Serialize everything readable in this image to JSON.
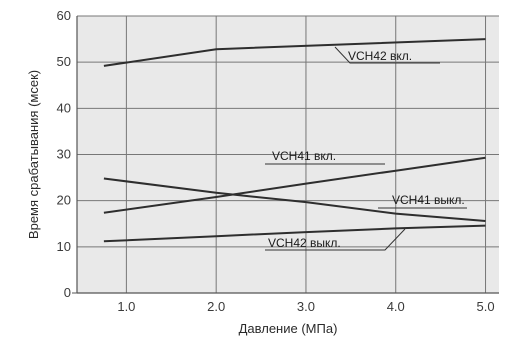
{
  "chart_data": {
    "type": "line",
    "xlabel": "Давление (МПа)",
    "ylabel": "Время срабатывания (мсек)",
    "xlim": [
      0.45,
      5.15
    ],
    "ylim": [
      0,
      60
    ],
    "x_ticks": [
      "1.0",
      "2.0",
      "3.0",
      "4.0",
      "5.0"
    ],
    "y_ticks": [
      "0",
      "10",
      "20",
      "30",
      "40",
      "50",
      "60"
    ],
    "grid": true,
    "background": "#e9e9e9",
    "line_color": "#2e2e2e",
    "series": [
      {
        "name": "VCH42 вкл.",
        "points": [
          [
            0.75,
            49.2
          ],
          [
            2.0,
            52.8
          ],
          [
            5.0,
            55.0
          ]
        ]
      },
      {
        "name": "VCH41 вкл.",
        "points": [
          [
            0.75,
            17.4
          ],
          [
            2.0,
            20.8
          ],
          [
            3.0,
            23.7
          ],
          [
            4.0,
            26.5
          ],
          [
            5.0,
            29.3
          ]
        ]
      },
      {
        "name": "VCH41 выкл.",
        "points": [
          [
            0.75,
            24.8
          ],
          [
            2.0,
            21.7
          ],
          [
            3.0,
            19.7
          ],
          [
            4.0,
            17.2
          ],
          [
            5.0,
            15.6
          ]
        ]
      },
      {
        "name": "VCH42 выкл.",
        "points": [
          [
            0.75,
            11.2
          ],
          [
            2.0,
            12.3
          ],
          [
            3.0,
            13.2
          ],
          [
            4.0,
            14.0
          ],
          [
            5.0,
            14.6
          ]
        ]
      }
    ]
  }
}
